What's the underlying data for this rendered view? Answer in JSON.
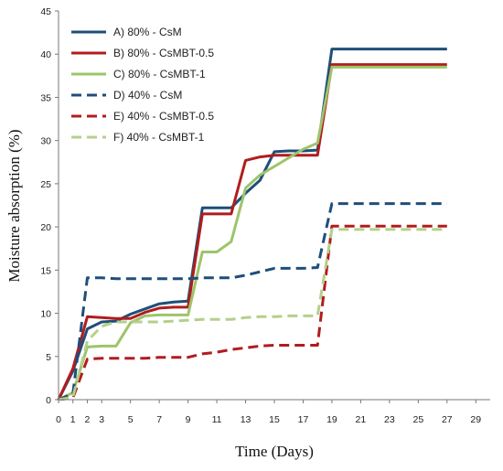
{
  "chart_data": {
    "type": "line",
    "xlabel": "Time (Days)",
    "ylabel": "Moisture absorption (%)",
    "xlim": [
      0,
      30
    ],
    "ylim": [
      0,
      45
    ],
    "xticks": [
      0,
      1,
      2,
      3,
      5,
      7,
      9,
      11,
      13,
      15,
      17,
      19,
      21,
      23,
      25,
      27,
      29
    ],
    "yticks": [
      0,
      5,
      10,
      15,
      20,
      25,
      30,
      35,
      40,
      45
    ],
    "grid": false,
    "legend_position": "top-left",
    "series": [
      {
        "name": "A) 80% - CsM",
        "color": "#1f4e79",
        "dash": "solid",
        "x": [
          0,
          1,
          2,
          3,
          4,
          5,
          6,
          7,
          8,
          9,
          10,
          11,
          12,
          13,
          14,
          15,
          16,
          17,
          18,
          19,
          20,
          21,
          22,
          23,
          24,
          25,
          26,
          27
        ],
        "y": [
          0,
          3.3,
          8.2,
          9.0,
          9.1,
          9.9,
          10.5,
          11.1,
          11.3,
          11.4,
          22.2,
          22.2,
          22.2,
          23.9,
          25.4,
          28.7,
          28.8,
          28.8,
          28.9,
          40.6,
          40.6,
          40.6,
          40.6,
          40.6,
          40.6,
          40.6,
          40.6,
          40.6
        ]
      },
      {
        "name": "B) 80% - CsMBT-0.5",
        "color": "#b01d1d",
        "dash": "solid",
        "x": [
          0,
          1,
          2,
          3,
          4,
          5,
          6,
          7,
          8,
          9,
          10,
          11,
          12,
          13,
          14,
          15,
          16,
          17,
          18,
          19,
          20,
          21,
          22,
          23,
          24,
          25,
          26,
          27
        ],
        "y": [
          0,
          3.6,
          9.6,
          9.5,
          9.4,
          9.4,
          10.1,
          10.6,
          10.7,
          10.7,
          21.5,
          21.5,
          21.5,
          27.7,
          28.1,
          28.3,
          28.3,
          28.3,
          28.3,
          38.8,
          38.8,
          38.8,
          38.8,
          38.8,
          38.8,
          38.8,
          38.8,
          38.8
        ]
      },
      {
        "name": "C) 80% - CsMBT-1",
        "color": "#9dc46b",
        "dash": "solid",
        "x": [
          0,
          1,
          2,
          3,
          4,
          5,
          6,
          7,
          8,
          9,
          10,
          11,
          12,
          13,
          14,
          15,
          16,
          17,
          18,
          19,
          20,
          21,
          22,
          23,
          24,
          25,
          26,
          27
        ],
        "y": [
          0,
          0.8,
          6.1,
          6.2,
          6.2,
          8.9,
          9.7,
          9.8,
          9.8,
          9.8,
          17.1,
          17.1,
          18.3,
          24.5,
          26.0,
          27.0,
          28.0,
          29.0,
          29.7,
          38.5,
          38.5,
          38.5,
          38.5,
          38.5,
          38.5,
          38.5,
          38.5,
          38.5
        ]
      },
      {
        "name": "D) 40% - CsM",
        "color": "#1f4e79",
        "dash": "dashed",
        "x": [
          0,
          1,
          2,
          3,
          4,
          5,
          6,
          7,
          8,
          9,
          10,
          11,
          12,
          13,
          14,
          15,
          16,
          17,
          18,
          19,
          20,
          21,
          22,
          23,
          24,
          25,
          26,
          27
        ],
        "y": [
          0,
          0.7,
          14.1,
          14.1,
          14.0,
          14.0,
          14.0,
          14.0,
          14.0,
          14.0,
          14.1,
          14.1,
          14.1,
          14.4,
          14.8,
          15.2,
          15.2,
          15.2,
          15.3,
          22.7,
          22.7,
          22.7,
          22.7,
          22.7,
          22.7,
          22.7,
          22.7,
          22.7
        ]
      },
      {
        "name": "E) 40% - CsMBT-0.5",
        "color": "#b01d1d",
        "dash": "dashed",
        "x": [
          0,
          1,
          2,
          3,
          4,
          5,
          6,
          7,
          8,
          9,
          10,
          11,
          12,
          13,
          14,
          15,
          16,
          17,
          18,
          19,
          20,
          21,
          22,
          23,
          24,
          25,
          26,
          27
        ],
        "y": [
          0,
          0.2,
          4.7,
          4.8,
          4.8,
          4.8,
          4.8,
          4.9,
          4.9,
          4.9,
          5.3,
          5.5,
          5.8,
          6.0,
          6.2,
          6.3,
          6.3,
          6.3,
          6.3,
          20.1,
          20.1,
          20.1,
          20.1,
          20.1,
          20.1,
          20.1,
          20.1,
          20.1
        ]
      },
      {
        "name": "F) 40% - CsMBT-1",
        "color": "#b5cf8c",
        "dash": "dashed",
        "x": [
          0,
          1,
          2,
          3,
          4,
          5,
          6,
          7,
          8,
          9,
          10,
          11,
          12,
          13,
          14,
          15,
          16,
          17,
          18,
          19,
          20,
          21,
          22,
          23,
          24,
          25,
          26,
          27
        ],
        "y": [
          0,
          0.3,
          6.8,
          8.5,
          9.0,
          9.0,
          9.0,
          9.0,
          9.1,
          9.2,
          9.3,
          9.3,
          9.3,
          9.5,
          9.6,
          9.6,
          9.7,
          9.7,
          9.7,
          19.7,
          19.7,
          19.7,
          19.7,
          19.7,
          19.7,
          19.7,
          19.7,
          19.7
        ]
      }
    ]
  }
}
